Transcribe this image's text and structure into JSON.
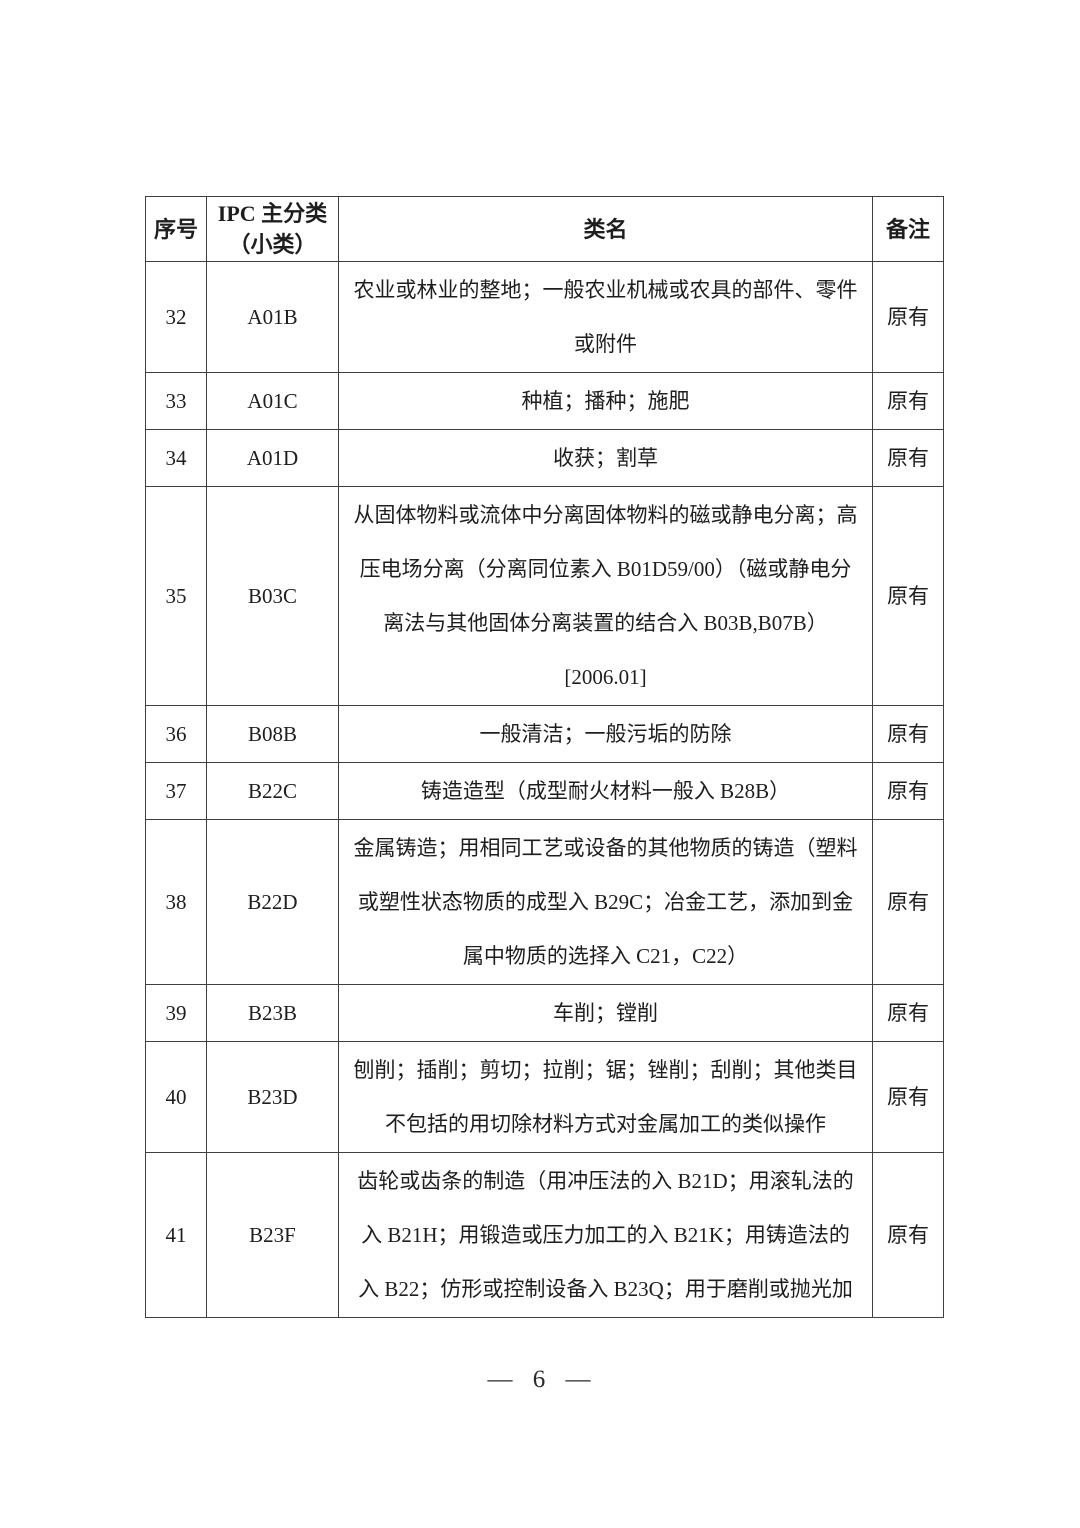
{
  "page": {
    "number_label": "— 6 —"
  },
  "table": {
    "headers": {
      "serial": "序号",
      "ipc": "IPC 主分类\n（小类）",
      "class_name": "类名",
      "remark": "备注"
    },
    "rows": [
      {
        "no": "32",
        "ipc": "A01B",
        "name": "农业或林业的整地；一般农业机械或农具的部件、零件\n或附件",
        "note": "原有"
      },
      {
        "no": "33",
        "ipc": "A01C",
        "name": "种植；播种；施肥",
        "note": "原有"
      },
      {
        "no": "34",
        "ipc": "A01D",
        "name": "收获；割草",
        "note": "原有"
      },
      {
        "no": "35",
        "ipc": "B03C",
        "name": "从固体物料或流体中分离固体物料的磁或静电分离；高\n压电场分离（分离同位素入 B01D59/00）（磁或静电分\n离法与其他固体分离装置的结合入 B03B,B07B）\n[2006.01]",
        "note": "原有"
      },
      {
        "no": "36",
        "ipc": "B08B",
        "name": "一般清洁；一般污垢的防除",
        "note": "原有"
      },
      {
        "no": "37",
        "ipc": "B22C",
        "name": "铸造造型（成型耐火材料一般入 B28B）",
        "note": "原有"
      },
      {
        "no": "38",
        "ipc": "B22D",
        "name": "金属铸造；用相同工艺或设备的其他物质的铸造（塑料\n或塑性状态物质的成型入 B29C；冶金工艺，添加到金\n属中物质的选择入 C21，C22）",
        "note": "原有"
      },
      {
        "no": "39",
        "ipc": "B23B",
        "name": "车削；镗削",
        "note": "原有"
      },
      {
        "no": "40",
        "ipc": "B23D",
        "name": "刨削；插削；剪切；拉削；锯；锉削；刮削；其他类目\n不包括的用切除材料方式对金属加工的类似操作",
        "note": "原有"
      },
      {
        "no": "41",
        "ipc": "B23F",
        "name": "齿轮或齿条的制造（用冲压法的入 B21D；用滚轧法的\n入 B21H；用锻造或压力加工的入 B21K；用铸造法的\n入 B22；仿形或控制设备入 B23Q；用于磨削或抛光加",
        "note": "原有"
      }
    ]
  }
}
